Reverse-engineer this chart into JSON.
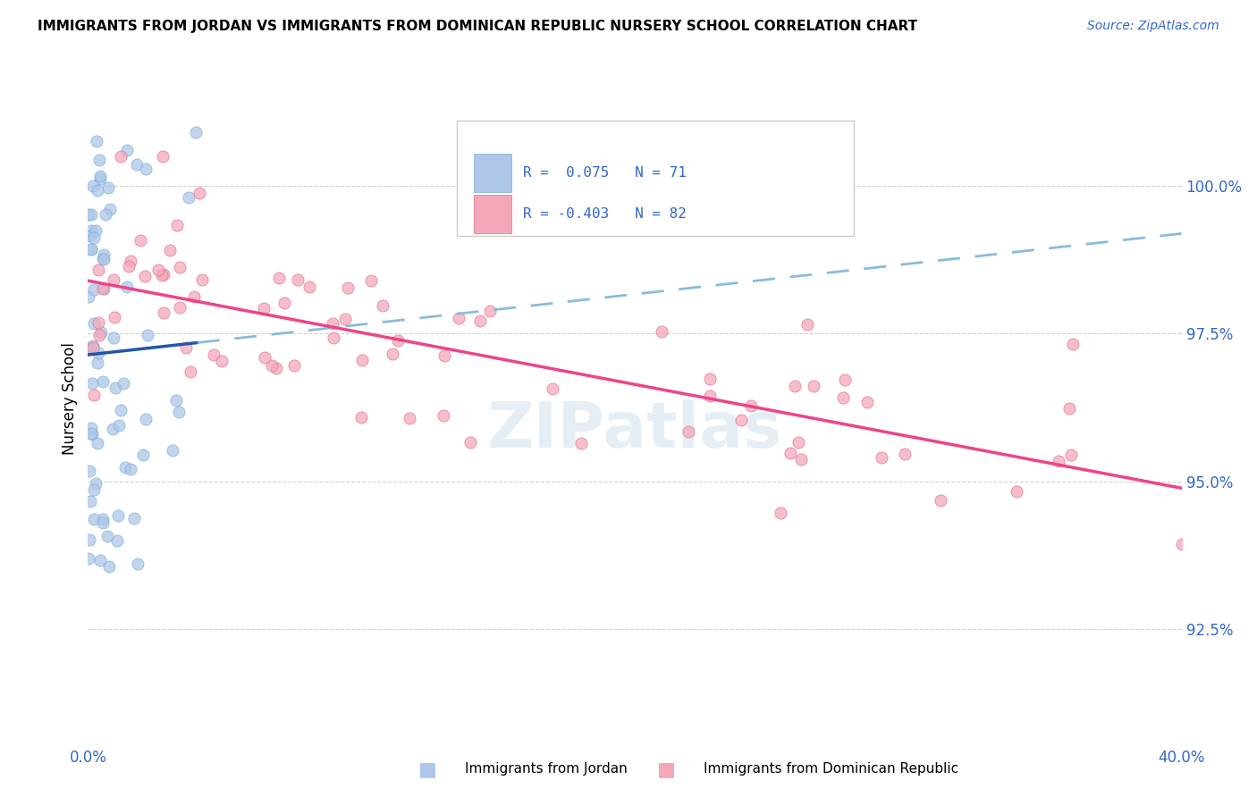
{
  "title": "IMMIGRANTS FROM JORDAN VS IMMIGRANTS FROM DOMINICAN REPUBLIC NURSERY SCHOOL CORRELATION CHART",
  "source": "Source: ZipAtlas.com",
  "ylabel": "Nursery School",
  "y_ticks": [
    92.5,
    95.0,
    97.5,
    100.0
  ],
  "x_min": 0.0,
  "x_max": 40.0,
  "y_min": 91.0,
  "y_max": 101.8,
  "blue_scatter_color": "#aec6e8",
  "blue_scatter_edge": "#7ab0d4",
  "pink_scatter_color": "#f4a7b9",
  "pink_scatter_edge": "#e07090",
  "blue_line_color": "#2255aa",
  "pink_line_color": "#ee4488",
  "dashed_line_color": "#88bbdd",
  "legend_text_color": "#3366cc",
  "axis_label_color": "#3366cc",
  "watermark_color": "#c8daea",
  "legend_r1": "R =  0.075",
  "legend_n1": "N = 71",
  "legend_r2": "R = -0.403",
  "legend_n2": "N = 82"
}
